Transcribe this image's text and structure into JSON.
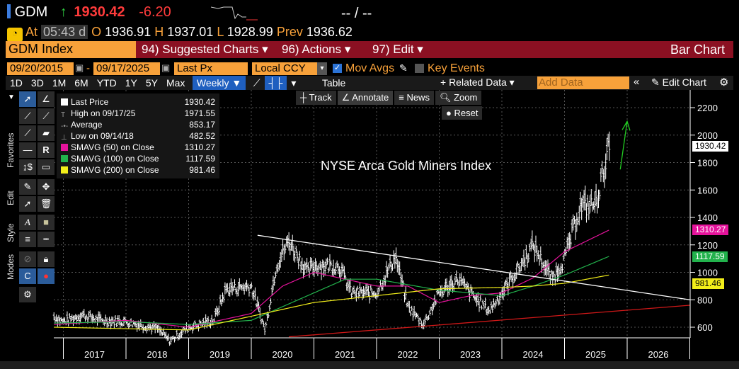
{
  "header": {
    "ticker": "GDM",
    "arrow": "↑",
    "last": "1930.42",
    "change": "-6.20",
    "bid_ask": "-- / --",
    "at_label": "At",
    "time": "05:43 d",
    "open_label": "O",
    "open": "1936.91",
    "high_label": "H",
    "high": "1937.01",
    "low_label": "L",
    "low": "1928.99",
    "prev_label": "Prev",
    "prev": "1936.62"
  },
  "menu": {
    "security": "GDM Index",
    "suggested": "94) Suggested Charts ▾",
    "actions": "96) Actions ▾",
    "edit": "97) Edit ▾",
    "title": "Bar Chart"
  },
  "controls": {
    "start": "09/20/2015",
    "sep": "-",
    "end": "09/17/2025",
    "field": "Last Px",
    "ccy": "Local CCY",
    "mov_avgs": "Mov Avgs",
    "key_events": "Key Events"
  },
  "toolbar": {
    "periods": [
      "1D",
      "3D",
      "1M",
      "6M",
      "YTD",
      "1Y",
      "5Y",
      "Max"
    ],
    "freq": "Weekly ▼",
    "table": "Table",
    "related": "+ Related Data ▾",
    "add_data_placeholder": "Add Data",
    "collapse": "«",
    "edit_chart": "Edit Chart"
  },
  "chart_tools": {
    "track": "Track",
    "annotate": "Annotate",
    "news": "News",
    "zoom": "Zoom",
    "reset": "Reset"
  },
  "side_tabs": {
    "favorites": "Favorites",
    "edit": "Edit",
    "style": "Style",
    "modes": "Modes"
  },
  "legend": [
    {
      "label": "Last Price",
      "value": "1930.42",
      "color": "#ffffff"
    },
    {
      "label": "High on 09/17/25",
      "value": "1971.55",
      "color": ""
    },
    {
      "label": "Average",
      "value": "853.17",
      "color": ""
    },
    {
      "label": "Low on 09/14/18",
      "value": "482.52",
      "color": ""
    },
    {
      "label": "SMAVG (50)  on Close",
      "value": "1310.27",
      "color": "#e5139b"
    },
    {
      "label": "SMAVG (100)  on Close",
      "value": "1117.59",
      "color": "#22b24c"
    },
    {
      "label": "SMAVG (200)  on Close",
      "value": "981.46",
      "color": "#f2ee1a"
    }
  ],
  "chart_data": {
    "type": "bar",
    "title": "NYSE Arca Gold Miners Index",
    "xlabel": "",
    "ylabel": "",
    "x_ticks": [
      "2017",
      "2018",
      "2019",
      "2020",
      "2021",
      "2022",
      "2023",
      "2024",
      "2025",
      "2026"
    ],
    "y_ticks": [
      "600",
      "800",
      "1000",
      "1200",
      "1400",
      "1600",
      "1800",
      "2000",
      "2200"
    ],
    "ylim": [
      540,
      2320
    ],
    "xlim": [
      2016.85,
      2027.0
    ],
    "price_tags": [
      {
        "value": "1930.42",
        "color": "#ffffff"
      },
      {
        "value": "1310.27",
        "color": "#e5139b"
      },
      {
        "value": "1117.59",
        "color": "#22b24c"
      },
      {
        "value": "981.46",
        "color": "#f2ee1a"
      }
    ],
    "price": [
      [
        2016.85,
        680
      ],
      [
        2017.0,
        640
      ],
      [
        2017.3,
        690
      ],
      [
        2017.6,
        650
      ],
      [
        2018.0,
        640
      ],
      [
        2018.5,
        590
      ],
      [
        2018.7,
        500
      ],
      [
        2019.0,
        600
      ],
      [
        2019.4,
        650
      ],
      [
        2019.6,
        880
      ],
      [
        2020.0,
        900
      ],
      [
        2020.22,
        580
      ],
      [
        2020.4,
        1050
      ],
      [
        2020.6,
        1230
      ],
      [
        2020.9,
        1000
      ],
      [
        2021.0,
        1050
      ],
      [
        2021.4,
        1050
      ],
      [
        2021.6,
        850
      ],
      [
        2022.0,
        850
      ],
      [
        2022.3,
        1120
      ],
      [
        2022.5,
        750
      ],
      [
        2022.75,
        620
      ],
      [
        2023.0,
        850
      ],
      [
        2023.3,
        950
      ],
      [
        2023.6,
        800
      ],
      [
        2023.8,
        720
      ],
      [
        2024.0,
        850
      ],
      [
        2024.3,
        1050
      ],
      [
        2024.5,
        1200
      ],
      [
        2024.8,
        950
      ],
      [
        2025.0,
        1100
      ],
      [
        2025.25,
        1480
      ],
      [
        2025.5,
        1500
      ],
      [
        2025.6,
        1700
      ],
      [
        2025.72,
        1930
      ]
    ],
    "series": [
      {
        "name": "SMAVG (50)",
        "color": "#e5139b",
        "points": [
          [
            2016.85,
            620
          ],
          [
            2018,
            650
          ],
          [
            2019,
            600
          ],
          [
            2020,
            700
          ],
          [
            2020.5,
            900
          ],
          [
            2021,
            1000
          ],
          [
            2022,
            900
          ],
          [
            2022.5,
            900
          ],
          [
            2023,
            780
          ],
          [
            2023.5,
            830
          ],
          [
            2024,
            850
          ],
          [
            2024.5,
            960
          ],
          [
            2025,
            1150
          ],
          [
            2025.72,
            1310
          ]
        ]
      },
      {
        "name": "SMAVG (100)",
        "color": "#22b24c",
        "points": [
          [
            2016.85,
            630
          ],
          [
            2018,
            640
          ],
          [
            2019,
            620
          ],
          [
            2020,
            650
          ],
          [
            2021,
            850
          ],
          [
            2021.5,
            950
          ],
          [
            2022,
            950
          ],
          [
            2023,
            870
          ],
          [
            2024,
            830
          ],
          [
            2024.5,
            900
          ],
          [
            2025,
            980
          ],
          [
            2025.72,
            1118
          ]
        ]
      },
      {
        "name": "SMAVG (200)",
        "color": "#f2ee1a",
        "points": [
          [
            2016.85,
            600
          ],
          [
            2019,
            580
          ],
          [
            2020,
            680
          ],
          [
            2021,
            780
          ],
          [
            2022,
            830
          ],
          [
            2023,
            880
          ],
          [
            2024,
            890
          ],
          [
            2024.5,
            900
          ],
          [
            2025,
            920
          ],
          [
            2025.72,
            981
          ]
        ]
      }
    ],
    "annotations": [
      {
        "name": "resistance-trendline",
        "color": "#ffffff",
        "points": [
          [
            2020.1,
            1270
          ],
          [
            2027,
            800
          ]
        ]
      },
      {
        "name": "support-trendline",
        "color": "#d01818",
        "points": [
          [
            2020.6,
            530
          ],
          [
            2027,
            760
          ]
        ]
      },
      {
        "name": "up-arrow",
        "color": "#22cc22",
        "points": [
          [
            2025.89,
            1750
          ],
          [
            2026.0,
            2100
          ]
        ]
      }
    ]
  }
}
